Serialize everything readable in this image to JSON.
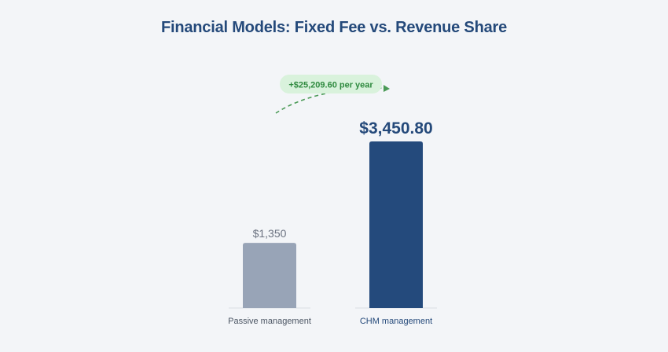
{
  "chart_data": {
    "type": "bar",
    "title": "Financial Models: Fixed Fee vs. Revenue Share",
    "categories": [
      "Passive management",
      "CHM management"
    ],
    "values": [
      1350,
      3450.8
    ],
    "value_labels": [
      "$1,350",
      "$3,450.80"
    ],
    "ylim": [
      0,
      3450.8
    ],
    "grid": false,
    "legend": "none",
    "xlabel": "",
    "ylabel": "",
    "annotation": {
      "text": "+$25,209.60 per year"
    },
    "colors": {
      "bars": [
        "#98a4b7",
        "#244a7c"
      ],
      "title": "#24497a",
      "annotation_text": "#2f8a3f",
      "annotation_bg": "#d9f2dc",
      "annotation_arrow": "#4a9a56",
      "background": "#f3f5f8"
    }
  }
}
